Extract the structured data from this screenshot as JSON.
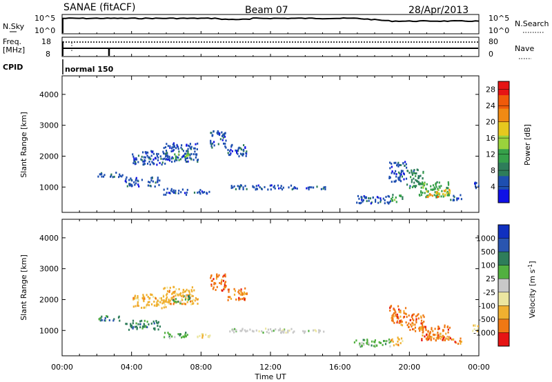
{
  "header": {
    "station": "SANAE (fitACF)",
    "beam": "Beam 07",
    "date": "28/Apr/2013"
  },
  "top_panels": {
    "nsky_label": "N.Sky",
    "nsearch_label": "N.Search",
    "nsky_ticks": [
      "10^5",
      "10^0"
    ],
    "freq_label_1": "Freq.",
    "freq_label_2": "[MHz]",
    "freq_ticks": [
      "18",
      "8"
    ],
    "nave_label": "Nave",
    "nave_ticks": [
      "80",
      "0"
    ],
    "cpid_label": "CPID",
    "cpid_value": "normal 150"
  },
  "colors": {
    "power": [
      "#1010e6",
      "#1e4fb0",
      "#2e7d5a",
      "#36a04a",
      "#9ad23c",
      "#e6c81e",
      "#f08a14",
      "#f05a0a",
      "#e61414"
    ],
    "velocity": [
      "#1030c0",
      "#2a55b0",
      "#2e7d5a",
      "#52b040",
      "#c8c8c8",
      "#ece6a0",
      "#f0b030",
      "#f07814",
      "#e61414"
    ]
  },
  "chart_data": [
    {
      "type": "heatmap",
      "name": "power",
      "x_ticks": [
        "00:00",
        "04:00",
        "08:00",
        "12:00",
        "16:00",
        "20:00",
        "00:00"
      ],
      "xlabel": "Time UT",
      "ylabel": "Slant Range [km]",
      "y_ticks": [
        1000,
        2000,
        3000,
        4000
      ],
      "ylim": [
        180,
        4600
      ],
      "xlim_hours": [
        0,
        24
      ],
      "colorbar": {
        "label": "Power [dB]",
        "ticks": [
          4,
          8,
          12,
          16,
          20,
          24,
          28
        ],
        "range": [
          0,
          30
        ],
        "colors_key": "power"
      },
      "blobs": [
        {
          "t": [
            4.0,
            6.0
          ],
          "r": [
            1750,
            2200
          ],
          "c": 1
        },
        {
          "t": [
            5.8,
            7.8
          ],
          "r": [
            1850,
            2450
          ],
          "c": 1
        },
        {
          "t": [
            6.3,
            6.8
          ],
          "r": [
            1900,
            2100
          ],
          "c": 3
        },
        {
          "t": [
            7.0,
            7.3
          ],
          "r": [
            2000,
            2200
          ],
          "c": 4
        },
        {
          "t": [
            8.5,
            9.4
          ],
          "r": [
            2300,
            2850
          ],
          "c": 1
        },
        {
          "t": [
            9.5,
            10.6
          ],
          "r": [
            2000,
            2400
          ],
          "c": 1
        },
        {
          "t": [
            3.6,
            5.6
          ],
          "r": [
            1050,
            1350
          ],
          "c": 1
        },
        {
          "t": [
            5.8,
            7.2
          ],
          "r": [
            780,
            980
          ],
          "c": 1
        },
        {
          "t": [
            7.5,
            8.5
          ],
          "r": [
            800,
            950
          ],
          "c": 1
        },
        {
          "t": [
            2.0,
            3.5
          ],
          "r": [
            1350,
            1500
          ],
          "c": 1
        },
        {
          "t": [
            9.6,
            13.5
          ],
          "r": [
            950,
            1100
          ],
          "c": 1
        },
        {
          "t": [
            13.8,
            15.2
          ],
          "r": [
            950,
            1050
          ],
          "c": 1
        },
        {
          "t": [
            16.8,
            18.9
          ],
          "r": [
            500,
            750
          ],
          "c": 1
        },
        {
          "t": [
            18.9,
            19.6
          ],
          "r": [
            550,
            800
          ],
          "c": 3
        },
        {
          "t": [
            18.8,
            19.8
          ],
          "r": [
            1200,
            1850
          ],
          "c": 1
        },
        {
          "t": [
            19.8,
            20.8
          ],
          "r": [
            1000,
            1600
          ],
          "c": 2
        },
        {
          "t": [
            20.5,
            22.3
          ],
          "r": [
            700,
            1200
          ],
          "c": 3
        },
        {
          "t": [
            20.9,
            21.7
          ],
          "r": [
            700,
            900
          ],
          "c": 6
        },
        {
          "t": [
            21.5,
            22.3
          ],
          "r": [
            750,
            950
          ],
          "c": 5
        },
        {
          "t": [
            22.3,
            23.0
          ],
          "r": [
            600,
            800
          ],
          "c": 1
        },
        {
          "t": [
            23.6,
            24.0
          ],
          "r": [
            1000,
            1200
          ],
          "c": 1
        }
      ]
    },
    {
      "type": "heatmap",
      "name": "velocity",
      "x_ticks": [
        "00:00",
        "04:00",
        "08:00",
        "12:00",
        "16:00",
        "20:00",
        "00:00"
      ],
      "xlabel": "Time UT",
      "ylabel": "Slant Range [km]",
      "y_ticks": [
        1000,
        2000,
        3000,
        4000
      ],
      "ylim": [
        180,
        4600
      ],
      "xlim_hours": [
        0,
        24
      ],
      "colorbar": {
        "label": "Velocity [m s^-1]",
        "ticks": [
          1000,
          500,
          100,
          25,
          -25,
          -100,
          -500,
          -1000
        ],
        "colors_key": "velocity"
      },
      "blobs": [
        {
          "t": [
            4.0,
            6.0
          ],
          "r": [
            1750,
            2200
          ],
          "c": 6
        },
        {
          "t": [
            5.8,
            7.8
          ],
          "r": [
            1850,
            2450
          ],
          "c": 6
        },
        {
          "t": [
            6.3,
            6.8
          ],
          "r": [
            1900,
            2100
          ],
          "c": 3
        },
        {
          "t": [
            7.0,
            7.3
          ],
          "r": [
            2000,
            2200
          ],
          "c": 3
        },
        {
          "t": [
            8.5,
            9.4
          ],
          "r": [
            2300,
            2850
          ],
          "c": 7
        },
        {
          "t": [
            9.5,
            10.6
          ],
          "r": [
            2000,
            2400
          ],
          "c": 7
        },
        {
          "t": [
            3.6,
            5.6
          ],
          "r": [
            1050,
            1350
          ],
          "c": 2
        },
        {
          "t": [
            5.8,
            7.2
          ],
          "r": [
            780,
            980
          ],
          "c": 3
        },
        {
          "t": [
            7.5,
            8.5
          ],
          "r": [
            800,
            950
          ],
          "c": 5
        },
        {
          "t": [
            2.0,
            3.5
          ],
          "r": [
            1350,
            1500
          ],
          "c": 2
        },
        {
          "t": [
            9.6,
            13.5
          ],
          "r": [
            950,
            1100
          ],
          "c": 4
        },
        {
          "t": [
            13.8,
            15.2
          ],
          "r": [
            950,
            1050
          ],
          "c": 4
        },
        {
          "t": [
            16.8,
            18.9
          ],
          "r": [
            500,
            750
          ],
          "c": 3
        },
        {
          "t": [
            18.9,
            19.6
          ],
          "r": [
            550,
            800
          ],
          "c": 6
        },
        {
          "t": [
            18.8,
            19.8
          ],
          "r": [
            1200,
            1850
          ],
          "c": 7
        },
        {
          "t": [
            19.8,
            20.8
          ],
          "r": [
            1000,
            1600
          ],
          "c": 7
        },
        {
          "t": [
            20.5,
            22.3
          ],
          "r": [
            700,
            1200
          ],
          "c": 7
        },
        {
          "t": [
            20.9,
            21.7
          ],
          "r": [
            700,
            900
          ],
          "c": 7
        },
        {
          "t": [
            21.5,
            22.3
          ],
          "r": [
            750,
            950
          ],
          "c": 6
        },
        {
          "t": [
            22.3,
            23.0
          ],
          "r": [
            600,
            800
          ],
          "c": 7
        },
        {
          "t": [
            23.6,
            24.0
          ],
          "r": [
            1000,
            1200
          ],
          "c": 5
        }
      ]
    }
  ]
}
